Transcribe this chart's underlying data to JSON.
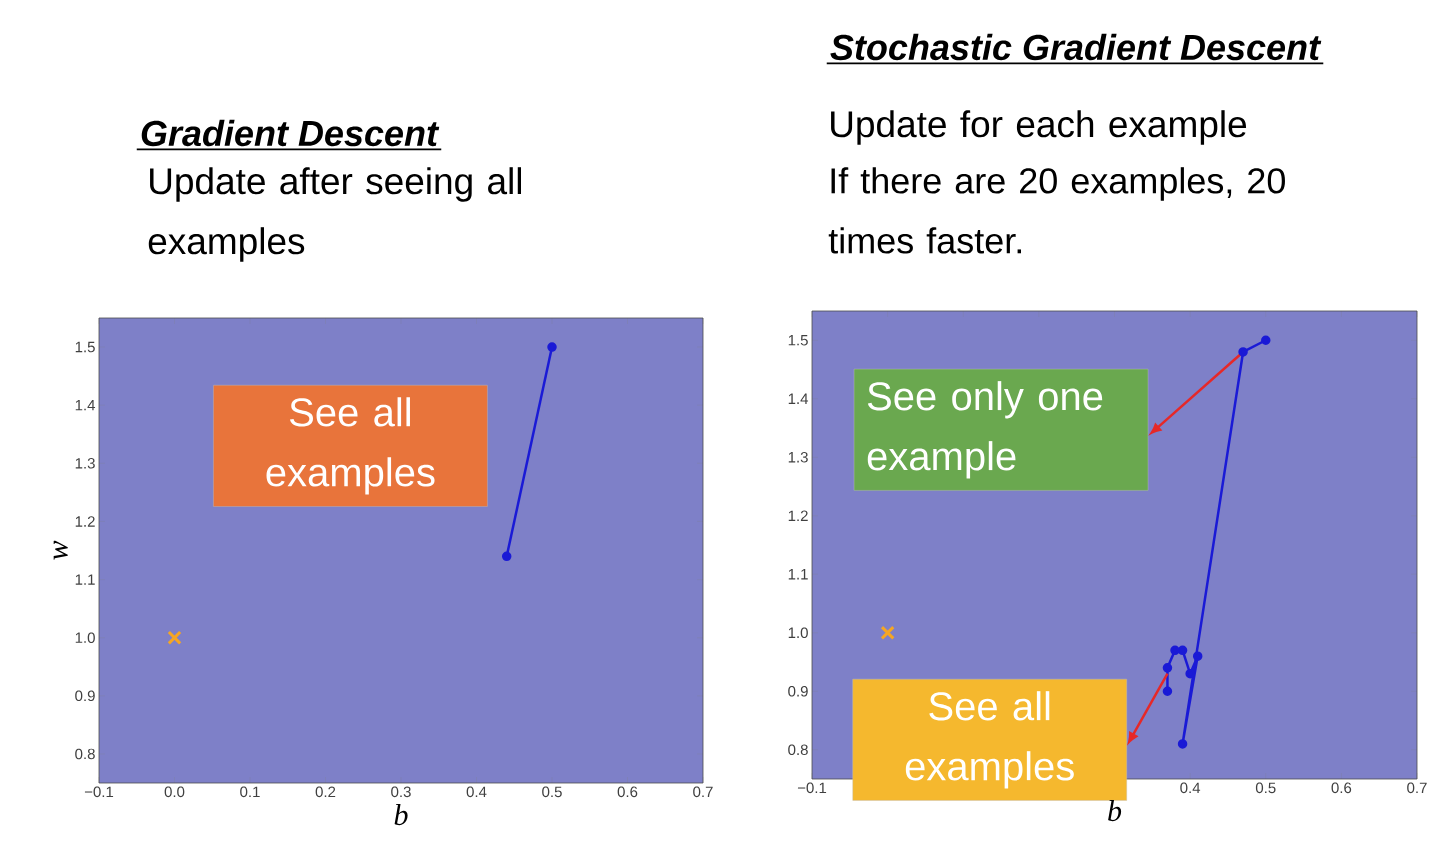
{
  "chart_data": [
    {
      "type": "line",
      "title": "Gradient Descent",
      "subtitle": "Update after seeing all examples",
      "xlabel": "b",
      "ylabel": "w",
      "annotations": [
        "See all examples"
      ],
      "xlim": [
        -0.1,
        0.7
      ],
      "ylim": [
        0.75,
        1.55
      ],
      "xticks": [
        {
          "value": -0.1,
          "label": "−0.1"
        },
        {
          "value": 0,
          "label": "0.0"
        },
        {
          "value": 0.1,
          "label": "0.1"
        },
        {
          "value": 0.2,
          "label": "0.2"
        },
        {
          "value": 0.3,
          "label": "0.3"
        },
        {
          "value": 0.4,
          "label": "0.4"
        },
        {
          "value": 0.5,
          "label": "0.5"
        },
        {
          "value": 0.6,
          "label": "0.6"
        },
        {
          "value": 0.7,
          "label": "0.7"
        }
      ],
      "yticks": [
        {
          "value": 0.8,
          "label": "0.8"
        },
        {
          "value": 0.9,
          "label": "0.9"
        },
        {
          "value": 1.0,
          "label": "1.0"
        },
        {
          "value": 1.1,
          "label": "1.1"
        },
        {
          "value": 1.2,
          "label": "1.2"
        },
        {
          "value": 1.3,
          "label": "1.3"
        },
        {
          "value": 1.4,
          "label": "1.4"
        },
        {
          "value": 1.5,
          "label": "1.5"
        }
      ],
      "series": [
        {
          "type": "line",
          "color": "#1a1ad6",
          "marker": "circle",
          "x": [
            0.5,
            0.44
          ],
          "values": [
            1.5,
            1.14
          ]
        },
        {
          "type": "scatter",
          "color": "#f5a623",
          "marker": "cross",
          "x": [
            0.0
          ],
          "values": [
            1.0
          ]
        }
      ]
    },
    {
      "type": "line",
      "title": "Stochastic Gradient Descent",
      "subtitle": "Update for each example",
      "xlabel": "b",
      "annotations": [
        "If there are 20 examples, 20 times faster.",
        "See only one example",
        {
          "text": "See all examples",
          "x": 0.37,
          "y": 0.93
        }
      ],
      "xlim": [
        -0.1,
        0.7
      ],
      "ylim": [
        0.75,
        1.55
      ],
      "xticks": [
        {
          "value": -0.1,
          "label": "−0.1"
        },
        {
          "value": 0,
          "label": null
        },
        {
          "value": 0.1,
          "label": null
        },
        {
          "value": 0.2,
          "label": null
        },
        {
          "value": 0.3,
          "label": null
        },
        {
          "value": 0.4,
          "label": "0.4"
        },
        {
          "value": 0.5,
          "label": "0.5"
        },
        {
          "value": 0.6,
          "label": "0.6"
        },
        {
          "value": 0.7,
          "label": "0.7"
        }
      ],
      "yticks": [
        {
          "value": 0.8,
          "label": "0.8"
        },
        {
          "value": 0.9,
          "label": "0.9"
        },
        {
          "value": 1.0,
          "label": "1.0"
        },
        {
          "value": 1.1,
          "label": "1.1"
        },
        {
          "value": 1.2,
          "label": "1.2"
        },
        {
          "value": 1.3,
          "label": "1.3"
        },
        {
          "value": 1.4,
          "label": "1.4"
        },
        {
          "value": 1.5,
          "label": "1.5"
        }
      ],
      "series": [
        {
          "type": "line",
          "color": "#1a1ad6",
          "marker": "circle",
          "x": [
            0.5,
            0.47,
            0.39,
            0.41,
            0.4,
            0.39,
            0.38,
            0.37,
            0.37
          ],
          "values": [
            1.5,
            1.48,
            0.81,
            0.96,
            0.93,
            0.97,
            0.97,
            0.94,
            0.9
          ]
        },
        {
          "type": "scatter",
          "color": "#f5a623",
          "marker": "cross",
          "x": [
            0.0
          ],
          "values": [
            1.0
          ]
        }
      ]
    }
  ]
}
